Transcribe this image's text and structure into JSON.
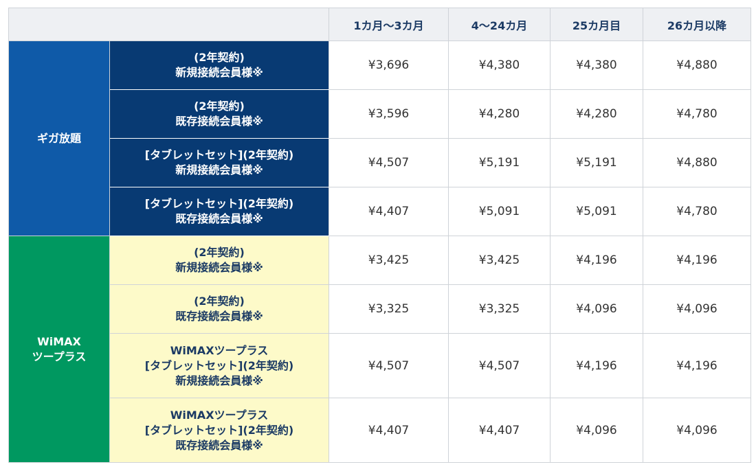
{
  "header": {
    "columns": [
      "1カ月〜3カ月",
      "4〜24カ月",
      "25カ月目",
      "26カ月以降"
    ]
  },
  "groups": [
    {
      "name": "ギガ放題",
      "rows": [
        {
          "lines": [
            "(2年契約)",
            "新規接続会員様※"
          ],
          "values": [
            "¥3,696",
            "¥4,380",
            "¥4,380",
            "¥4,880"
          ]
        },
        {
          "lines": [
            "(2年契約)",
            "既存接続会員様※"
          ],
          "values": [
            "¥3,596",
            "¥4,280",
            "¥4,280",
            "¥4,780"
          ]
        },
        {
          "lines": [
            "[タブレットセット](2年契約)",
            "新規接続会員様※"
          ],
          "values": [
            "¥4,507",
            "¥5,191",
            "¥5,191",
            "¥4,880"
          ]
        },
        {
          "lines": [
            "[タブレットセット](2年契約)",
            "既存接続会員様※"
          ],
          "values": [
            "¥4,407",
            "¥5,091",
            "¥5,091",
            "¥4,780"
          ]
        }
      ]
    },
    {
      "name_lines": [
        "WiMAX",
        "ツープラス"
      ],
      "rows": [
        {
          "lines": [
            "(2年契約)",
            "新規接続会員様※"
          ],
          "values": [
            "¥3,425",
            "¥3,425",
            "¥4,196",
            "¥4,196"
          ]
        },
        {
          "lines": [
            "(2年契約)",
            "既存接続会員様※"
          ],
          "values": [
            "¥3,325",
            "¥3,325",
            "¥4,096",
            "¥4,096"
          ]
        },
        {
          "lines": [
            "WiMAXツープラス",
            "[タブレットセット](2年契約)",
            "新規接続会員様※"
          ],
          "values": [
            "¥4,507",
            "¥4,507",
            "¥4,196",
            "¥4,196"
          ]
        },
        {
          "lines": [
            "WiMAXツープラス",
            "[タブレットセット](2年契約)",
            "既存接続会員様※"
          ],
          "values": [
            "¥4,407",
            "¥4,407",
            "¥4,096",
            "¥4,096"
          ]
        }
      ]
    }
  ],
  "colors": {
    "giga_group_bg": "#0f5aa8",
    "giga_plan_bg": "#083a73",
    "wimax_group_bg": "#009860",
    "wimax_plan_bg": "#fdfac9",
    "header_bg": "#eef0f3",
    "header_text": "#1b3a64"
  }
}
